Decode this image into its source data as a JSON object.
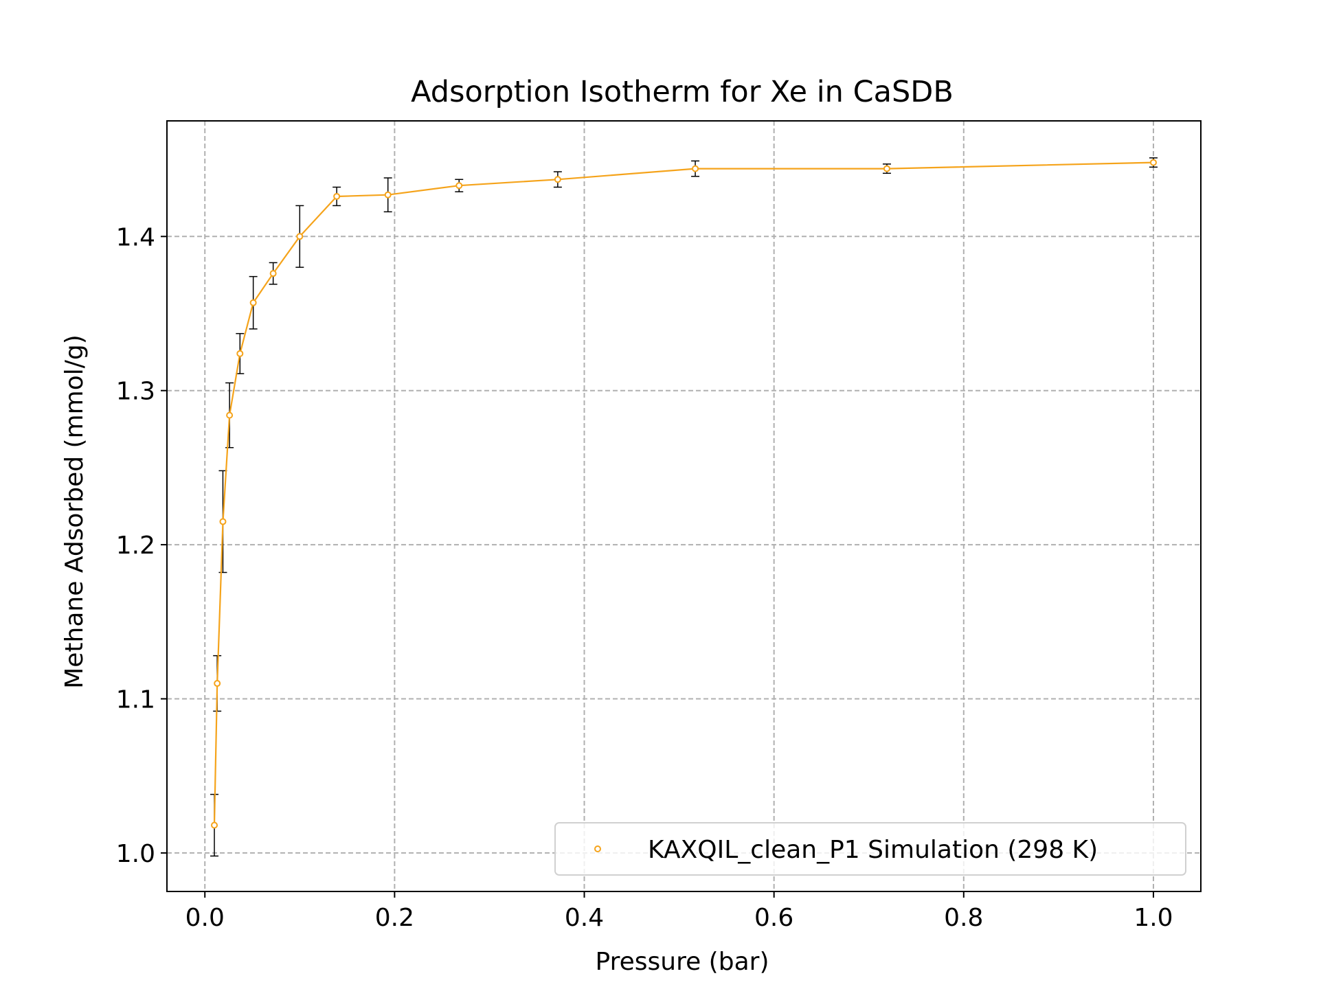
{
  "chart_data": {
    "type": "line",
    "title": "Adsorption Isotherm for Xe in CaSDB",
    "xlabel": "Pressure (bar)",
    "ylabel": "Methane Adsorbed (mmol/g)",
    "xlim": [
      -0.04,
      1.05
    ],
    "ylim": [
      0.975,
      1.475
    ],
    "xticks": [
      0.0,
      0.2,
      0.4,
      0.6,
      0.8,
      1.0
    ],
    "xtick_labels": [
      "0.0",
      "0.2",
      "0.4",
      "0.6",
      "0.8",
      "1.0"
    ],
    "yticks": [
      1.0,
      1.1,
      1.2,
      1.3,
      1.4
    ],
    "ytick_labels": [
      "1.0",
      "1.1",
      "1.2",
      "1.3",
      "1.4"
    ],
    "grid": true,
    "grid_style": "dashed",
    "legend_position": "lower right",
    "series": [
      {
        "name": "KAXQIL_clean_P1 Simulation (298 K)",
        "color": "#f5a31a",
        "marker": "open-circle",
        "x": [
          0.01,
          0.013,
          0.019,
          0.026,
          0.037,
          0.051,
          0.072,
          0.1,
          0.139,
          0.193,
          0.268,
          0.372,
          0.517,
          0.719,
          1.0
        ],
        "y": [
          1.018,
          1.11,
          1.215,
          1.284,
          1.324,
          1.357,
          1.376,
          1.4,
          1.426,
          1.427,
          1.433,
          1.437,
          1.444,
          1.444,
          1.448
        ],
        "yerr": [
          0.02,
          0.018,
          0.033,
          0.021,
          0.013,
          0.017,
          0.007,
          0.02,
          0.006,
          0.011,
          0.004,
          0.005,
          0.005,
          0.003,
          0.003
        ]
      }
    ]
  }
}
